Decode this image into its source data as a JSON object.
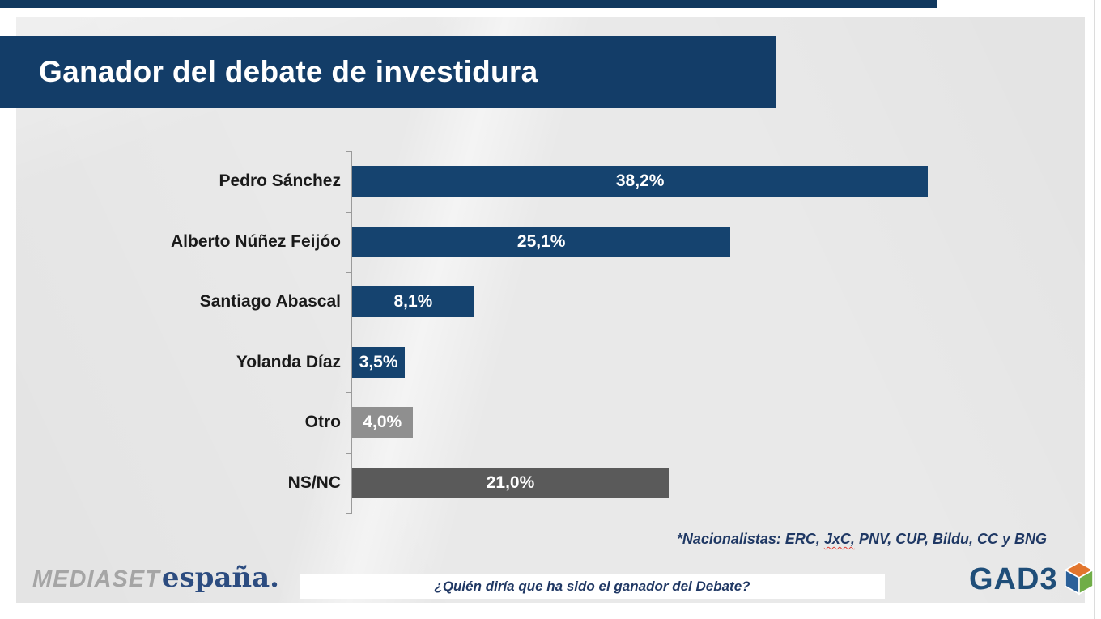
{
  "title": "Ganador del debate de investidura",
  "chart_data": {
    "type": "bar",
    "orientation": "horizontal",
    "title": "Ganador del debate de investidura",
    "categories": [
      "Pedro Sánchez",
      "Alberto Núñez Feijóo",
      "Santiago Abascal",
      "Yolanda Díaz",
      "Otro",
      "NS/NC"
    ],
    "values": [
      38.2,
      25.1,
      8.1,
      3.5,
      4.0,
      21.0
    ],
    "value_labels": [
      "38,2%",
      "25,1%",
      "8,1%",
      "3,5%",
      "4,0%",
      "21,0%"
    ],
    "bar_colors": [
      "#15436F",
      "#15436F",
      "#15436F",
      "#15436F",
      "#8F8F8F",
      "#5A5A5A"
    ],
    "xlim": [
      0,
      40
    ],
    "grid": false,
    "legend": false,
    "value_label_position": "inside-center"
  },
  "footnote": {
    "part1": "*Nacionalistas: ERC, ",
    "spellchecked_word": "JxC,",
    "part2": " PNV, CUP, Bildu, CC y BNG"
  },
  "question": "¿Quién diría que ha sido el ganador del Debate?",
  "logos": {
    "mediaset_primary": "MEDIASET",
    "mediaset_secondary": "españa.",
    "gad3": "GAD3"
  },
  "colors": {
    "banner_bg": "#133D68",
    "top_strip": "#11395F",
    "panel_bg": "#E9E9E9",
    "bar_navy": "#15436F",
    "bar_gray_light": "#8F8F8F",
    "bar_gray_dark": "#5A5A5A",
    "footnote_navy": "#1F3864",
    "gad3_navy": "#1F4E79",
    "gad3_cube_orange": "#E2752D",
    "gad3_cube_blue": "#2A6099",
    "gad3_cube_green": "#70AD47",
    "mediaset_gray": "#A5A5A5",
    "mediaset_navy": "#2C4C80",
    "axis_gray": "#9A9A9A"
  }
}
